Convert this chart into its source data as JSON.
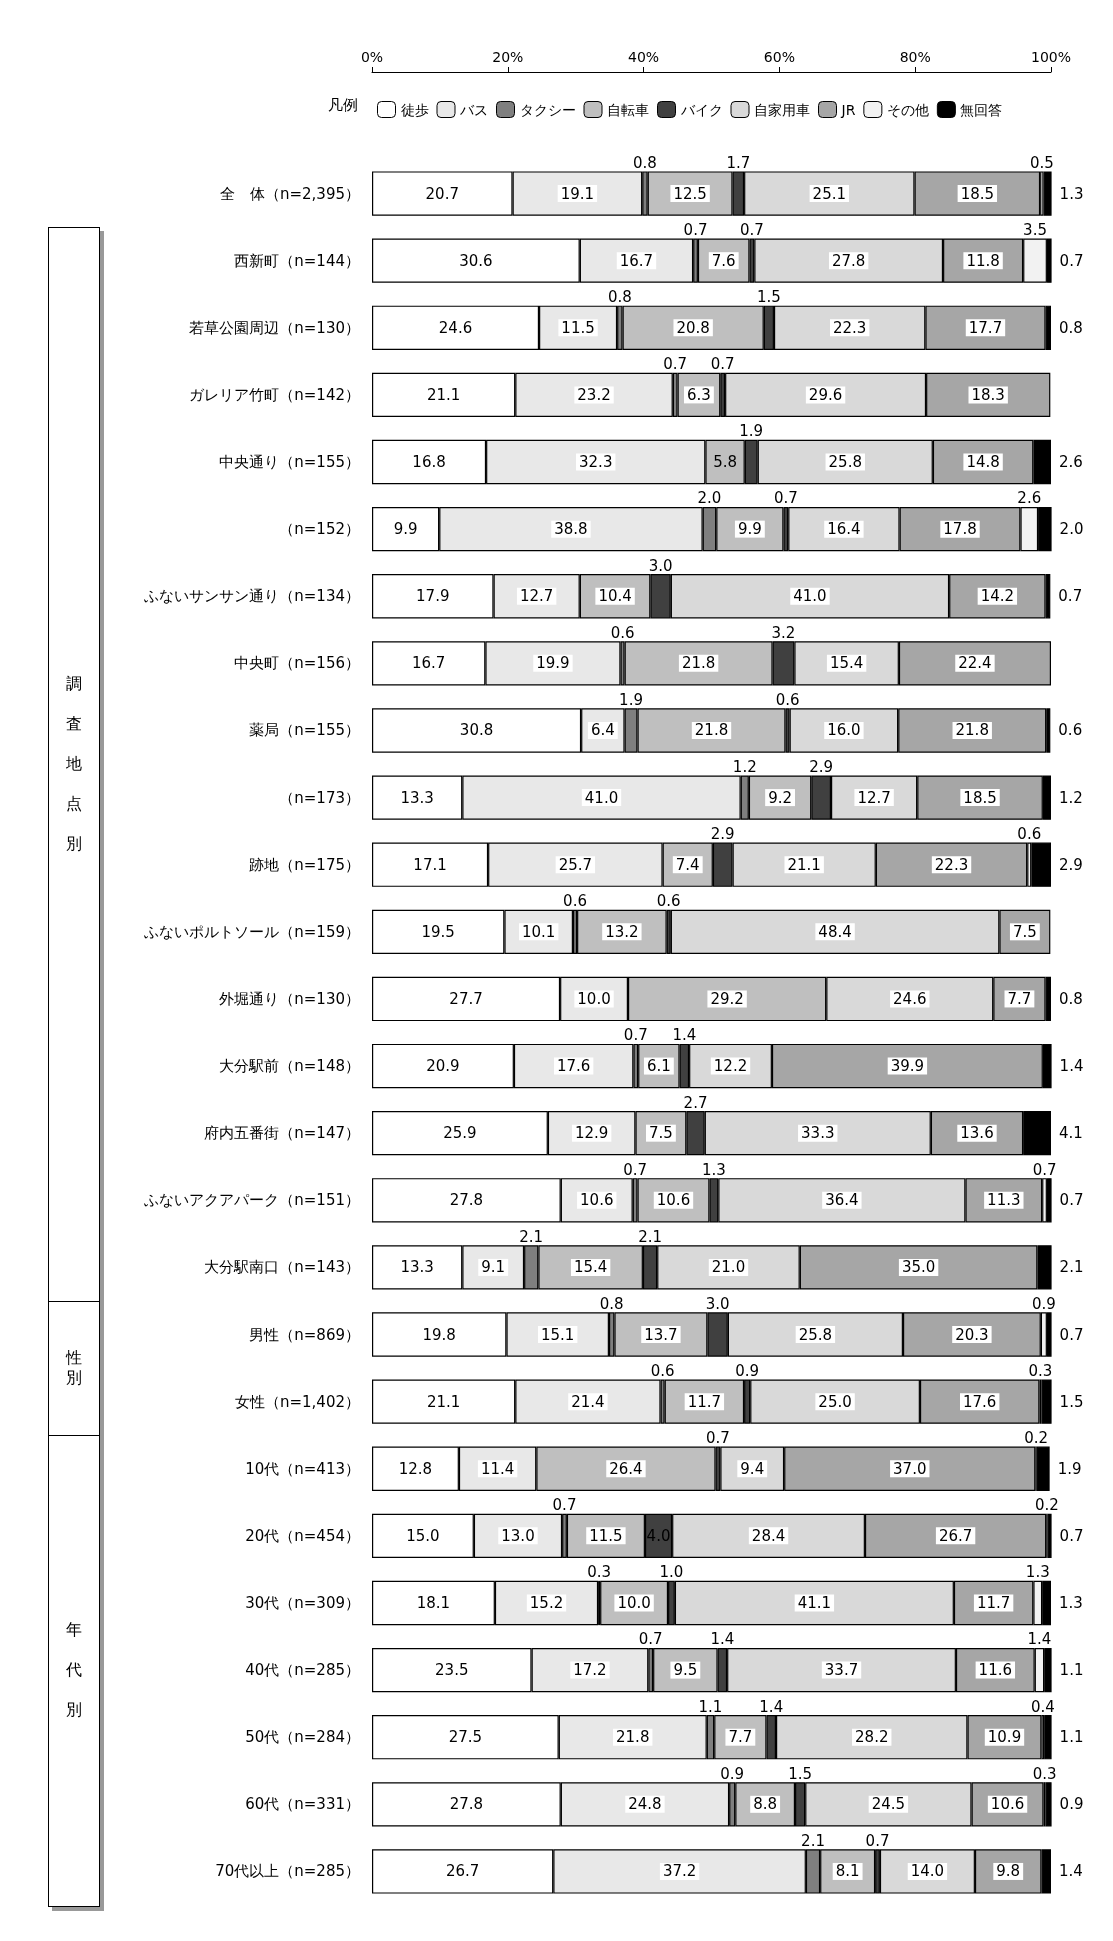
{
  "chart_data": {
    "type": "bar",
    "orientation": "horizontal",
    "stacked": true,
    "legend": "top",
    "legend_title": "凡例",
    "grid": false,
    "annotations": [
      "調査地点別",
      "性別",
      "年代別"
    ],
    "xlim": [
      0,
      100
    ],
    "xticks": [
      {
        "value": 0,
        "label": "0%"
      },
      {
        "value": 20,
        "label": "20%"
      },
      {
        "value": 40,
        "label": "40%"
      },
      {
        "value": 60,
        "label": "60%"
      },
      {
        "value": 80,
        "label": "80%"
      },
      {
        "value": 100,
        "label": "100%"
      }
    ],
    "categories": [
      "全　体（n=2,395）",
      "西新町（n=144）",
      "若草公園周辺（n=130）",
      "ガレリア竹町（n=142）",
      "中央通り（n=155）",
      "（n=152）",
      "ふないサンサン通り（n=134）",
      "中央町（n=156）",
      "薬局（n=155）",
      "（n=173）",
      "跡地（n=175）",
      "ふないポルトソール（n=159）",
      "外堀通り（n=130）",
      "大分駅前（n=148）",
      "府内五番街（n=147）",
      "ふないアクアパーク（n=151）",
      "大分駅南口（n=143）",
      "男性（n=869）",
      "女性（n=1,402）",
      "10代（n=413）",
      "20代（n=454）",
      "30代（n=309）",
      "40代（n=285）",
      "50代（n=284）",
      "60代（n=331）",
      "70代以上（n=285）"
    ],
    "series": [
      {
        "name": "徒歩",
        "color": "#ffffff",
        "values": [
          20.7,
          30.6,
          24.6,
          21.1,
          16.8,
          9.9,
          17.9,
          16.7,
          30.8,
          13.3,
          17.1,
          19.5,
          27.7,
          20.9,
          25.9,
          27.8,
          13.3,
          19.8,
          21.1,
          12.8,
          15.0,
          18.1,
          23.5,
          27.5,
          27.8,
          26.7
        ],
        "value_labels": [
          "20.7",
          "30.6",
          "24.6",
          "21.1",
          "16.8",
          "9.9",
          "17.9",
          "16.7",
          "30.8",
          "13.3",
          "17.1",
          "19.5",
          "27.7",
          "20.9",
          "25.9",
          "27.8",
          "13.3",
          "19.8",
          "21.1",
          "12.8",
          "15.0",
          "18.1",
          "23.5",
          "27.5",
          "27.8",
          "26.7"
        ]
      },
      {
        "name": "バス",
        "color": "#e8e8e8",
        "values": [
          19.1,
          16.7,
          11.5,
          23.2,
          32.3,
          38.8,
          12.7,
          19.9,
          6.4,
          41.0,
          25.7,
          10.1,
          10.0,
          17.6,
          12.9,
          10.6,
          9.1,
          15.1,
          21.4,
          11.4,
          13.0,
          15.2,
          17.2,
          21.8,
          24.8,
          37.2
        ],
        "value_labels": [
          "19.1",
          "16.7",
          "11.5",
          "23.2",
          "32.3",
          "38.8",
          "12.7",
          "19.9",
          "6.4",
          "41.0",
          "25.7",
          "10.1",
          "10.0",
          "17.6",
          "12.9",
          "10.6",
          "9.1",
          "15.1",
          "21.4",
          "11.4",
          "13.0",
          "15.2",
          "17.2",
          "21.8",
          "24.8",
          "37.2"
        ]
      },
      {
        "name": "タクシー",
        "color": "#7f7f7f",
        "values": [
          0.8,
          0.7,
          0.8,
          0.7,
          null,
          2.0,
          null,
          0.6,
          1.9,
          1.2,
          null,
          0.6,
          null,
          0.7,
          null,
          0.7,
          2.1,
          0.8,
          0.6,
          null,
          0.7,
          0.3,
          0.7,
          1.1,
          0.9,
          2.1
        ],
        "value_labels": [
          "0.8",
          "0.7",
          "0.8",
          "0.7",
          null,
          "2.0",
          null,
          "0.6",
          "1.9",
          "1.2",
          null,
          "0.6",
          null,
          "0.7",
          null,
          "0.7",
          "2.1",
          "0.8",
          "0.6",
          null,
          "0.7",
          "0.3",
          "0.7",
          "1.1",
          "0.9",
          "2.1"
        ]
      },
      {
        "name": "自転車",
        "color": "#bfbfbf",
        "values": [
          12.5,
          7.6,
          20.8,
          6.3,
          5.8,
          9.9,
          10.4,
          21.8,
          21.8,
          9.2,
          7.4,
          13.2,
          29.2,
          6.1,
          7.5,
          10.6,
          15.4,
          13.7,
          11.7,
          26.4,
          11.5,
          10.0,
          9.5,
          7.7,
          8.8,
          8.1
        ],
        "value_labels": [
          "12.5",
          "7.6",
          "20.8",
          "6.3",
          "5.8",
          "9.9",
          "10.4",
          "21.8",
          "21.8",
          "9.2",
          "7.4",
          "13.2",
          "29.2",
          "6.1",
          "7.5",
          "10.6",
          "15.4",
          "13.7",
          "11.7",
          "26.4",
          "11.5",
          "10.0",
          "9.5",
          "7.7",
          "8.8",
          "8.1"
        ]
      },
      {
        "name": "バイク",
        "color": "#404040",
        "values": [
          1.7,
          0.7,
          1.5,
          0.7,
          1.9,
          0.7,
          3.0,
          3.2,
          0.6,
          2.9,
          2.9,
          0.6,
          null,
          1.4,
          2.7,
          1.3,
          2.1,
          3.0,
          0.9,
          0.7,
          4.0,
          1.0,
          1.4,
          1.4,
          1.5,
          0.7
        ],
        "value_labels": [
          "1.7",
          "0.7",
          "1.5",
          "0.7",
          "1.9",
          "0.7",
          "3.0",
          "3.2",
          "0.6",
          "2.9",
          "2.9",
          "0.6",
          null,
          "1.4",
          "2.7",
          "1.3",
          "2.1",
          "3.0",
          "0.9",
          "0.7",
          "4.0",
          "1.0",
          "1.4",
          "1.4",
          "1.5",
          "0.7"
        ]
      },
      {
        "name": "自家用車",
        "color": "#d9d9d9",
        "values": [
          25.1,
          27.8,
          22.3,
          29.6,
          25.8,
          16.4,
          41.0,
          15.4,
          16.0,
          12.7,
          21.1,
          48.4,
          24.6,
          12.2,
          33.3,
          36.4,
          21.0,
          25.8,
          25.0,
          9.4,
          28.4,
          41.1,
          33.7,
          28.2,
          24.5,
          14.0
        ],
        "value_labels": [
          "25.1",
          "27.8",
          "22.3",
          "29.6",
          "25.8",
          "16.4",
          "41.0",
          "15.4",
          "16.0",
          "12.7",
          "21.1",
          "48.4",
          "24.6",
          "12.2",
          "33.3",
          "36.4",
          "21.0",
          "25.8",
          "25.0",
          "9.4",
          "28.4",
          "41.1",
          "33.7",
          "28.2",
          "24.5",
          "14.0"
        ]
      },
      {
        "name": "JR",
        "color": "#a6a6a6",
        "values": [
          18.5,
          11.8,
          17.7,
          18.3,
          14.8,
          17.8,
          14.2,
          22.4,
          21.8,
          18.5,
          22.3,
          7.5,
          7.7,
          39.9,
          13.6,
          11.3,
          35.0,
          20.3,
          17.6,
          37.0,
          26.7,
          11.7,
          11.6,
          10.9,
          10.6,
          9.8
        ],
        "value_labels": [
          "18.5",
          "11.8",
          "17.7",
          "18.3",
          "14.8",
          "17.8",
          "14.2",
          "22.4",
          "21.8",
          "18.5",
          "22.3",
          "7.5",
          "7.7",
          "39.9",
          "13.6",
          "11.3",
          "35.0",
          "20.3",
          "17.6",
          "37.0",
          "26.7",
          "11.7",
          "11.6",
          "10.9",
          "10.6",
          "9.8"
        ]
      },
      {
        "name": "その他",
        "color": "#f2f2f2",
        "values": [
          0.5,
          3.5,
          null,
          null,
          null,
          2.6,
          null,
          null,
          null,
          null,
          0.6,
          null,
          null,
          null,
          null,
          0.7,
          null,
          0.9,
          0.3,
          0.2,
          0.2,
          1.3,
          1.4,
          0.4,
          0.3,
          null
        ],
        "value_labels": [
          "0.5",
          "3.5",
          null,
          null,
          null,
          "2.6",
          null,
          null,
          null,
          null,
          "0.6",
          null,
          null,
          null,
          null,
          "0.7",
          null,
          "0.9",
          "0.3",
          "0.2",
          "0.2",
          "1.3",
          "1.4",
          "0.4",
          "0.3",
          null
        ]
      },
      {
        "name": "無回答",
        "color": "#000000",
        "values": [
          1.3,
          0.7,
          0.8,
          null,
          2.6,
          2.0,
          0.7,
          null,
          0.6,
          1.2,
          2.9,
          null,
          0.8,
          1.4,
          4.1,
          0.7,
          2.1,
          0.7,
          1.5,
          1.9,
          0.7,
          1.3,
          1.1,
          1.1,
          0.9,
          1.4
        ],
        "value_labels": [
          "1.3",
          "0.7",
          "0.8",
          null,
          "2.6",
          "2.0",
          "0.7",
          null,
          "0.6",
          "1.2",
          "2.9",
          null,
          "0.8",
          "1.4",
          "4.1",
          "0.7",
          "2.1",
          "0.7",
          "1.5",
          "1.9",
          "0.7",
          "1.3",
          "1.1",
          "1.1",
          "0.9",
          "1.4"
        ]
      }
    ]
  }
}
